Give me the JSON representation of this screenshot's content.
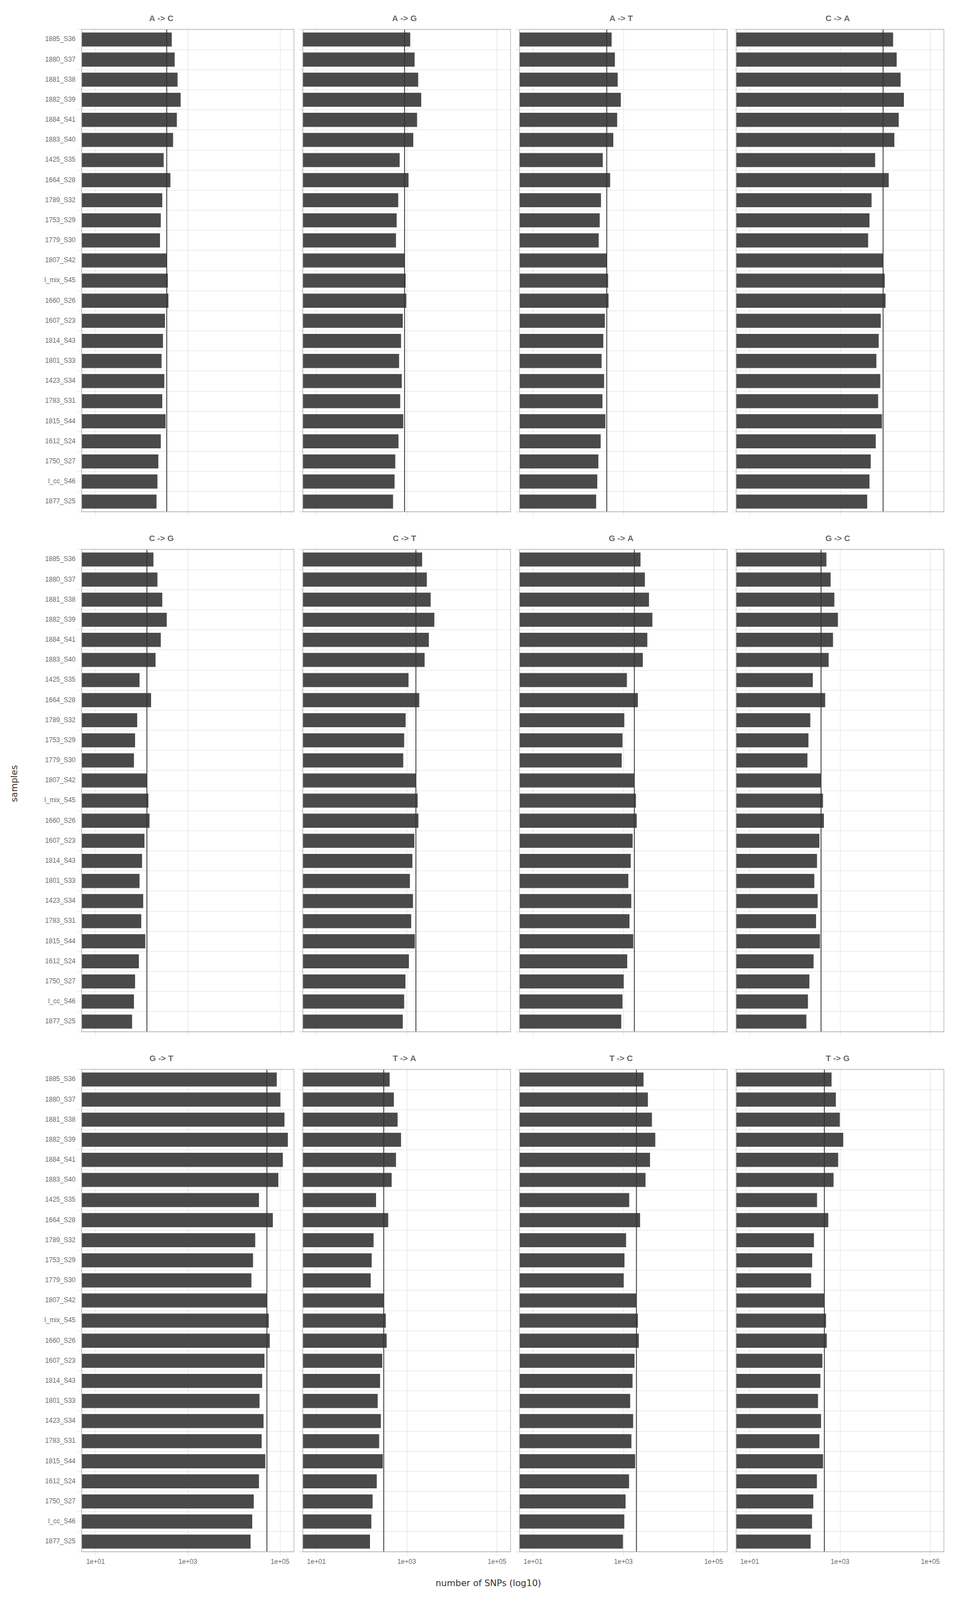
{
  "xlabel": "number of SNPs (log10)",
  "ylabel": "samples",
  "chart_data": [
    {
      "type": "bar",
      "title": "A -> C",
      "orientation": "horizontal",
      "log": "x",
      "grid": true,
      "tick_labels": "y",
      "color": "#4a4a4a",
      "categories": [
        "1885_S36",
        "1880_S37",
        "1881_S38",
        "1882_S39",
        "1884_S41",
        "1883_S40",
        "1425_S35",
        "1664_S28",
        "1789_S32",
        "1753_S29",
        "1779_S30",
        "1807_S42",
        "l_mix_S45",
        "1660_S26",
        "1607_S23",
        "1814_S43",
        "1801_S33",
        "1423_S34",
        "1783_S31",
        "1815_S44",
        "1612_S24",
        "1750_S27",
        "l_cc_S46",
        "1877_S25"
      ],
      "values": [
        450,
        520,
        600,
        700,
        580,
        480,
        300,
        420,
        280,
        260,
        250,
        350,
        370,
        380,
        320,
        290,
        270,
        310,
        280,
        330,
        260,
        230,
        220,
        210
      ],
      "mean": 350,
      "xlim": [
        5,
        200000
      ],
      "xticks": [
        {
          "value": 10,
          "label": "1e+01"
        },
        {
          "value": 1000,
          "label": "1e+03"
        },
        {
          "value": 100000,
          "label": "1e+05"
        }
      ]
    },
    {
      "type": "bar",
      "title": "A -> G",
      "orientation": "horizontal",
      "log": "x",
      "grid": true,
      "tick_labels": false,
      "color": "#4a4a4a",
      "categories": [
        "1885_S36",
        "1880_S37",
        "1881_S38",
        "1882_S39",
        "1884_S41",
        "1883_S40",
        "1425_S35",
        "1664_S28",
        "1789_S32",
        "1753_S29",
        "1779_S30",
        "1807_S42",
        "l_mix_S45",
        "1660_S26",
        "1607_S23",
        "1814_S43",
        "1801_S33",
        "1423_S34",
        "1783_S31",
        "1815_S44",
        "1612_S24",
        "1750_S27",
        "l_cc_S46",
        "1877_S25"
      ],
      "values": [
        1200,
        1500,
        1800,
        2100,
        1700,
        1400,
        700,
        1100,
        650,
        600,
        580,
        900,
        950,
        980,
        820,
        750,
        680,
        780,
        720,
        840,
        660,
        560,
        540,
        500
      ],
      "mean": 900,
      "xlim": [
        5,
        200000
      ],
      "xticks": [
        {
          "value": 10,
          "label": "1e+01"
        },
        {
          "value": 1000,
          "label": "1e+03"
        },
        {
          "value": 100000,
          "label": "1e+05"
        }
      ]
    },
    {
      "type": "bar",
      "title": "A -> T",
      "orientation": "horizontal",
      "log": "x",
      "grid": true,
      "tick_labels": false,
      "color": "#4a4a4a",
      "categories": [
        "1885_S36",
        "1880_S37",
        "1881_S38",
        "1882_S39",
        "1884_S41",
        "1883_S40",
        "1425_S35",
        "1664_S28",
        "1789_S32",
        "1753_S29",
        "1779_S30",
        "1807_S42",
        "l_mix_S45",
        "1660_S26",
        "1607_S23",
        "1814_S43",
        "1801_S33",
        "1423_S34",
        "1783_S31",
        "1815_S44",
        "1612_S24",
        "1750_S27",
        "l_cc_S46",
        "1877_S25"
      ],
      "values": [
        550,
        650,
        750,
        880,
        730,
        600,
        350,
        510,
        320,
        300,
        285,
        430,
        460,
        470,
        390,
        360,
        330,
        375,
        345,
        400,
        315,
        280,
        265,
        250
      ],
      "mean": 430,
      "xlim": [
        5,
        200000
      ],
      "xticks": [
        {
          "value": 10,
          "label": "1e+01"
        },
        {
          "value": 1000,
          "label": "1e+03"
        },
        {
          "value": 100000,
          "label": "1e+05"
        }
      ]
    },
    {
      "type": "bar",
      "title": "C -> A",
      "orientation": "horizontal",
      "log": "x",
      "grid": true,
      "tick_labels": false,
      "color": "#4a4a4a",
      "categories": [
        "1885_S36",
        "1880_S37",
        "1881_S38",
        "1882_S39",
        "1884_S41",
        "1883_S40",
        "1425_S35",
        "1664_S28",
        "1789_S32",
        "1753_S29",
        "1779_S30",
        "1807_S42",
        "l_mix_S45",
        "1660_S26",
        "1607_S23",
        "1814_S43",
        "1801_S33",
        "1423_S34",
        "1783_S31",
        "1815_S44",
        "1612_S24",
        "1750_S27",
        "l_cc_S46",
        "1877_S25"
      ],
      "values": [
        15000,
        18000,
        22000,
        26000,
        20000,
        16000,
        6000,
        12000,
        5000,
        4500,
        4200,
        9000,
        9800,
        10200,
        8000,
        7200,
        6400,
        7800,
        7000,
        8500,
        6200,
        4800,
        4500,
        4000
      ],
      "mean": 9000,
      "xlim": [
        5,
        200000
      ],
      "xticks": [
        {
          "value": 10,
          "label": "1e+01"
        },
        {
          "value": 1000,
          "label": "1e+03"
        },
        {
          "value": 100000,
          "label": "1e+05"
        }
      ]
    },
    {
      "type": "bar",
      "title": "C -> G",
      "orientation": "horizontal",
      "log": "x",
      "grid": true,
      "tick_labels": "y",
      "color": "#4a4a4a",
      "categories": [
        "1885_S36",
        "1880_S37",
        "1881_S38",
        "1882_S39",
        "1884_S41",
        "1883_S40",
        "1425_S35",
        "1664_S28",
        "1789_S32",
        "1753_S29",
        "1779_S30",
        "1807_S42",
        "l_mix_S45",
        "1660_S26",
        "1607_S23",
        "1814_S43",
        "1801_S33",
        "1423_S34",
        "1783_S31",
        "1815_S44",
        "1612_S24",
        "1750_S27",
        "l_cc_S46",
        "1877_S25"
      ],
      "values": [
        180,
        220,
        280,
        350,
        260,
        200,
        90,
        160,
        80,
        72,
        68,
        130,
        140,
        148,
        115,
        102,
        90,
        108,
        98,
        120,
        87,
        72,
        68,
        62
      ],
      "mean": 130,
      "xlim": [
        5,
        200000
      ],
      "xticks": [
        {
          "value": 10,
          "label": "1e+01"
        },
        {
          "value": 1000,
          "label": "1e+03"
        },
        {
          "value": 100000,
          "label": "1e+05"
        }
      ]
    },
    {
      "type": "bar",
      "title": "C -> T",
      "orientation": "horizontal",
      "log": "x",
      "grid": true,
      "tick_labels": false,
      "color": "#4a4a4a",
      "categories": [
        "1885_S36",
        "1880_S37",
        "1881_S38",
        "1882_S39",
        "1884_S41",
        "1883_S40",
        "1425_S35",
        "1664_S28",
        "1789_S32",
        "1753_S29",
        "1779_S30",
        "1807_S42",
        "l_mix_S45",
        "1660_S26",
        "1607_S23",
        "1814_S43",
        "1801_S33",
        "1423_S34",
        "1783_S31",
        "1815_S44",
        "1612_S24",
        "1750_S27",
        "l_cc_S46",
        "1877_S25"
      ],
      "values": [
        2200,
        2800,
        3400,
        4100,
        3100,
        2500,
        1100,
        1900,
        950,
        880,
        840,
        1600,
        1750,
        1820,
        1480,
        1340,
        1180,
        1380,
        1260,
        1520,
        1120,
        940,
        880,
        820
      ],
      "mean": 1600,
      "xlim": [
        5,
        200000
      ],
      "xticks": [
        {
          "value": 10,
          "label": "1e+01"
        },
        {
          "value": 1000,
          "label": "1e+03"
        },
        {
          "value": 100000,
          "label": "1e+05"
        }
      ]
    },
    {
      "type": "bar",
      "title": "G -> A",
      "orientation": "horizontal",
      "log": "x",
      "grid": true,
      "tick_labels": false,
      "color": "#4a4a4a",
      "categories": [
        "1885_S36",
        "1880_S37",
        "1881_S38",
        "1882_S39",
        "1884_S41",
        "1883_S40",
        "1425_S35",
        "1664_S28",
        "1789_S32",
        "1753_S29",
        "1779_S30",
        "1807_S42",
        "l_mix_S45",
        "1660_S26",
        "1607_S23",
        "1814_S43",
        "1801_S33",
        "1423_S34",
        "1783_S31",
        "1815_S44",
        "1612_S24",
        "1750_S27",
        "l_cc_S46",
        "1877_S25"
      ],
      "values": [
        2400,
        3000,
        3700,
        4400,
        3400,
        2700,
        1200,
        2100,
        1050,
        960,
        920,
        1750,
        1900,
        1980,
        1610,
        1460,
        1290,
        1500,
        1370,
        1660,
        1220,
        1020,
        960,
        900
      ],
      "mean": 1750,
      "xlim": [
        5,
        200000
      ],
      "xticks": [
        {
          "value": 10,
          "label": "1e+01"
        },
        {
          "value": 1000,
          "label": "1e+03"
        },
        {
          "value": 100000,
          "label": "1e+05"
        }
      ]
    },
    {
      "type": "bar",
      "title": "G -> C",
      "orientation": "horizontal",
      "log": "x",
      "grid": true,
      "tick_labels": false,
      "color": "#4a4a4a",
      "categories": [
        "1885_S36",
        "1880_S37",
        "1881_S38",
        "1882_S39",
        "1884_S41",
        "1883_S40",
        "1425_S35",
        "1664_S28",
        "1789_S32",
        "1753_S29",
        "1779_S30",
        "1807_S42",
        "l_mix_S45",
        "1660_S26",
        "1607_S23",
        "1814_S43",
        "1801_S33",
        "1423_S34",
        "1783_S31",
        "1815_S44",
        "1612_S24",
        "1750_S27",
        "l_cc_S46",
        "1877_S25"
      ],
      "values": [
        500,
        620,
        750,
        900,
        700,
        560,
        250,
        470,
        220,
        200,
        190,
        380,
        420,
        440,
        350,
        310,
        270,
        320,
        295,
        360,
        260,
        210,
        195,
        180
      ],
      "mean": 380,
      "xlim": [
        5,
        200000
      ],
      "xticks": [
        {
          "value": 10,
          "label": "1e+01"
        },
        {
          "value": 1000,
          "label": "1e+03"
        },
        {
          "value": 100000,
          "label": "1e+05"
        }
      ]
    },
    {
      "type": "bar",
      "title": "G -> T",
      "orientation": "horizontal",
      "log": "x",
      "grid": true,
      "tick_labels": true,
      "color": "#4a4a4a",
      "categories": [
        "1885_S36",
        "1880_S37",
        "1881_S38",
        "1882_S39",
        "1884_S41",
        "1883_S40",
        "1425_S35",
        "1664_S28",
        "1789_S32",
        "1753_S29",
        "1779_S30",
        "1807_S42",
        "l_mix_S45",
        "1660_S26",
        "1607_S23",
        "1814_S43",
        "1801_S33",
        "1423_S34",
        "1783_S31",
        "1815_S44",
        "1612_S24",
        "1750_S27",
        "l_cc_S46",
        "1877_S25"
      ],
      "values": [
        85000,
        102000,
        125000,
        148000,
        115000,
        92000,
        35000,
        70000,
        29000,
        26000,
        24000,
        52000,
        57000,
        60000,
        46000,
        41000,
        36000,
        44000,
        40000,
        48000,
        35000,
        27000,
        25000,
        23000
      ],
      "mean": 52000,
      "xlim": [
        5,
        200000
      ],
      "xticks": [
        {
          "value": 10,
          "label": "1e+01"
        },
        {
          "value": 1000,
          "label": "1e+03"
        },
        {
          "value": 100000,
          "label": "1e+05"
        }
      ]
    },
    {
      "type": "bar",
      "title": "T -> A",
      "orientation": "horizontal",
      "log": "x",
      "grid": true,
      "tick_labels": "x",
      "color": "#4a4a4a",
      "categories": [
        "1885_S36",
        "1880_S37",
        "1881_S38",
        "1882_S39",
        "1884_S41",
        "1883_S40",
        "1425_S35",
        "1664_S28",
        "1789_S32",
        "1753_S29",
        "1779_S30",
        "1807_S42",
        "l_mix_S45",
        "1660_S26",
        "1607_S23",
        "1814_S43",
        "1801_S33",
        "1423_S34",
        "1783_S31",
        "1815_S44",
        "1612_S24",
        "1750_S27",
        "l_cc_S46",
        "1877_S25"
      ],
      "values": [
        420,
        520,
        630,
        750,
        580,
        465,
        210,
        390,
        185,
        168,
        160,
        315,
        345,
        360,
        288,
        258,
        228,
        268,
        246,
        296,
        218,
        176,
        165,
        154
      ],
      "mean": 310,
      "xlim": [
        5,
        200000
      ],
      "xticks": [
        {
          "value": 10,
          "label": "1e+01"
        },
        {
          "value": 1000,
          "label": "1e+03"
        },
        {
          "value": 100000,
          "label": "1e+05"
        }
      ]
    },
    {
      "type": "bar",
      "title": "T -> C",
      "orientation": "horizontal",
      "log": "x",
      "grid": true,
      "tick_labels": "x",
      "color": "#4a4a4a",
      "categories": [
        "1885_S36",
        "1880_S37",
        "1881_S38",
        "1882_S39",
        "1884_S41",
        "1883_S40",
        "1425_S35",
        "1664_S28",
        "1789_S32",
        "1753_S29",
        "1779_S30",
        "1807_S42",
        "l_mix_S45",
        "1660_S26",
        "1607_S23",
        "1814_S43",
        "1801_S33",
        "1423_S34",
        "1783_S31",
        "1815_S44",
        "1612_S24",
        "1750_S27",
        "l_cc_S46",
        "1877_S25"
      ],
      "values": [
        2800,
        3500,
        4300,
        5100,
        3900,
        3100,
        1350,
        2350,
        1150,
        1060,
        1020,
        1950,
        2100,
        2200,
        1770,
        1600,
        1420,
        1650,
        1510,
        1830,
        1340,
        1120,
        1050,
        980
      ],
      "mean": 1950,
      "xlim": [
        5,
        200000
      ],
      "xticks": [
        {
          "value": 10,
          "label": "1e+01"
        },
        {
          "value": 1000,
          "label": "1e+03"
        },
        {
          "value": 100000,
          "label": "1e+05"
        }
      ]
    },
    {
      "type": "bar",
      "title": "T -> G",
      "orientation": "horizontal",
      "log": "x",
      "grid": true,
      "tick_labels": "x",
      "color": "#4a4a4a",
      "categories": [
        "1885_S36",
        "1880_S37",
        "1881_S38",
        "1882_S39",
        "1884_S41",
        "1883_S40",
        "1425_S35",
        "1664_S28",
        "1789_S32",
        "1753_S29",
        "1779_S30",
        "1807_S42",
        "l_mix_S45",
        "1660_S26",
        "1607_S23",
        "1814_S43",
        "1801_S33",
        "1423_S34",
        "1783_S31",
        "1815_S44",
        "1612_S24",
        "1750_S27",
        "l_cc_S46",
        "1877_S25"
      ],
      "values": [
        650,
        810,
        990,
        1180,
        910,
        720,
        310,
        550,
        265,
        242,
        230,
        450,
        490,
        510,
        408,
        368,
        326,
        380,
        350,
        422,
        308,
        256,
        240,
        224
      ],
      "mean": 450,
      "xlim": [
        5,
        200000
      ],
      "xticks": [
        {
          "value": 10,
          "label": "1e+01"
        },
        {
          "value": 1000,
          "label": "1e+03"
        },
        {
          "value": 100000,
          "label": "1e+05"
        }
      ]
    }
  ]
}
